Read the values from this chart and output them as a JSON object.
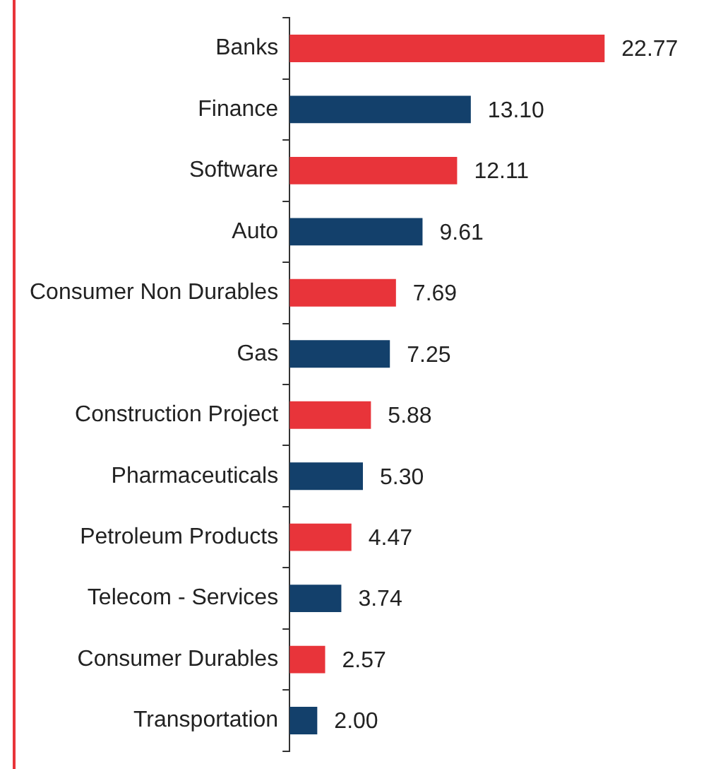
{
  "chart_data": {
    "type": "bar",
    "orientation": "horizontal",
    "categories": [
      "Banks",
      "Finance",
      "Software",
      "Auto",
      "Consumer Non Durables",
      "Gas",
      "Construction Project",
      "Pharmaceuticals",
      "Petroleum Products",
      "Telecom - Services",
      "Consumer Durables",
      "Transportation"
    ],
    "values": [
      22.77,
      13.1,
      12.11,
      9.61,
      7.69,
      7.25,
      5.88,
      5.3,
      4.47,
      3.74,
      2.57,
      2.0
    ],
    "colors": [
      "#e8343a",
      "#13406b",
      "#e8343a",
      "#13406b",
      "#e8343a",
      "#13406b",
      "#e8343a",
      "#13406b",
      "#e8343a",
      "#13406b",
      "#e8343a",
      "#13406b"
    ],
    "value_labels": [
      "22.77",
      "13.10",
      "12.11",
      "9.61",
      "7.69",
      "7.25",
      "5.88",
      "5.30",
      "4.47",
      "3.74",
      "2.57",
      "2.00"
    ],
    "grid": false,
    "legend": false
  }
}
